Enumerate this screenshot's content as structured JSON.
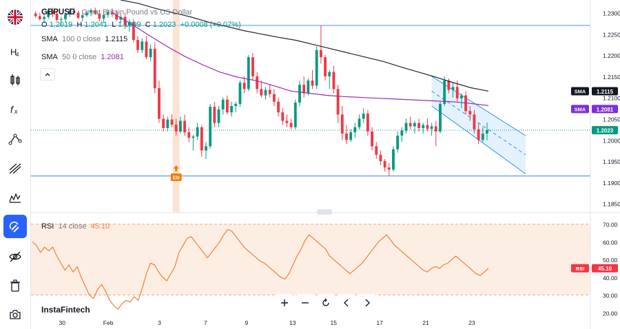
{
  "symbol": "GBPUSD",
  "symbol_desc": "Great Britain Pound vs US Dollar",
  "ohlc": {
    "o_label": "O",
    "o": "1.2019",
    "h_label": "H",
    "h": "1.2041",
    "l_label": "L",
    "l": "1.1999",
    "c_label": "C",
    "c": "1.2023",
    "chg": "+0.0008 (+0.07%)"
  },
  "sma100": {
    "label": "SMA",
    "params": "100  0  close",
    "value": "1.2115",
    "color": "#1e222d"
  },
  "sma50": {
    "label": "SMA",
    "params": "50  0  close",
    "value": "1.2081",
    "color": "#9c27b0"
  },
  "rsi": {
    "label": "RSI",
    "params": "14  close",
    "value": "45.10",
    "color": "#f57c3a"
  },
  "brand": "InstaFintech",
  "colors": {
    "up": "#089981",
    "down": "#f23645",
    "accent": "#2962ff",
    "channel": "#2196f3"
  },
  "chart_data": [
    {
      "type": "candlestick",
      "price_axis": {
        "ticks": [
          "1.2300",
          "1.2250",
          "1.2200",
          "1.2150",
          "1.2100",
          "1.2050",
          "1.2000",
          "1.1950",
          "1.1900",
          "1.1850"
        ],
        "min": 1.183,
        "max": 1.233
      },
      "x_ticks": [
        "30",
        "Feb",
        "3",
        "7",
        "9",
        "13",
        "15",
        "17",
        "21",
        "23"
      ],
      "last_price_label": "1.2023",
      "sma_labels": [
        {
          "name": "SMA",
          "value": "1.2115"
        },
        {
          "name": "SMA",
          "value": "1.2081"
        }
      ],
      "horizontal_levels": [
        1.227,
        1.1915
      ],
      "event_marker": {
        "label": "EN",
        "x_tick": "7"
      },
      "candles": [
        [
          1.2298,
          1.2303,
          1.2288,
          1.2292
        ],
        [
          1.2292,
          1.23,
          1.2282,
          1.2285
        ],
        [
          1.2285,
          1.2295,
          1.2275,
          1.229
        ],
        [
          1.229,
          1.231,
          1.2285,
          1.2305
        ],
        [
          1.2305,
          1.2312,
          1.229,
          1.2298
        ],
        [
          1.2298,
          1.2305,
          1.228,
          1.2283
        ],
        [
          1.2283,
          1.229,
          1.227,
          1.2285
        ],
        [
          1.2285,
          1.23,
          1.2278,
          1.2296
        ],
        [
          1.2296,
          1.231,
          1.229,
          1.2304
        ],
        [
          1.2304,
          1.2312,
          1.2295,
          1.23
        ],
        [
          1.23,
          1.2305,
          1.2285,
          1.2288
        ],
        [
          1.2288,
          1.2298,
          1.228,
          1.2294
        ],
        [
          1.2294,
          1.2305,
          1.229,
          1.23
        ],
        [
          1.23,
          1.231,
          1.2292,
          1.2306
        ],
        [
          1.2306,
          1.2312,
          1.2295,
          1.2298
        ],
        [
          1.2298,
          1.2305,
          1.228,
          1.2286
        ],
        [
          1.2286,
          1.23,
          1.2275,
          1.2295
        ],
        [
          1.2295,
          1.2308,
          1.2288,
          1.2302
        ],
        [
          1.2302,
          1.231,
          1.229,
          1.2296
        ],
        [
          1.2296,
          1.2304,
          1.228,
          1.2284
        ],
        [
          1.2284,
          1.2296,
          1.2276,
          1.229
        ],
        [
          1.229,
          1.23,
          1.2262,
          1.227
        ],
        [
          1.227,
          1.2285,
          1.2255,
          1.2278
        ],
        [
          1.2278,
          1.2285,
          1.223,
          1.2236
        ],
        [
          1.2236,
          1.2245,
          1.2205,
          1.2212
        ],
        [
          1.2212,
          1.224,
          1.2205,
          1.2232
        ],
        [
          1.2232,
          1.2245,
          1.219,
          1.2195
        ],
        [
          1.2195,
          1.2225,
          1.2185,
          1.2215
        ],
        [
          1.2215,
          1.223,
          1.211,
          1.2122
        ],
        [
          1.2122,
          1.214,
          1.204,
          1.205
        ],
        [
          1.205,
          1.206,
          1.202,
          1.2028
        ],
        [
          1.2028,
          1.2055,
          1.202,
          1.2048
        ],
        [
          1.2048,
          1.206,
          1.203,
          1.2036
        ],
        [
          1.2036,
          1.205,
          1.201,
          1.202
        ],
        [
          1.202,
          1.2055,
          1.2015,
          1.2045
        ],
        [
          1.2045,
          1.206,
          1.201,
          1.2018
        ],
        [
          1.2018,
          1.203,
          1.1995,
          1.2005
        ],
        [
          1.2005,
          1.2012,
          1.1975,
          1.2008
        ],
        [
          1.2008,
          1.204,
          1.2,
          1.203
        ],
        [
          1.203,
          1.2035,
          1.196,
          1.1975
        ],
        [
          1.1975,
          1.1995,
          1.1955,
          1.1985
        ],
        [
          1.1985,
          1.2085,
          1.198,
          1.2078
        ],
        [
          1.2078,
          1.209,
          1.203,
          1.204
        ],
        [
          1.204,
          1.208,
          1.203,
          1.2072
        ],
        [
          1.2072,
          1.21,
          1.206,
          1.2095
        ],
        [
          1.2095,
          1.2105,
          1.206,
          1.2065
        ],
        [
          1.2065,
          1.209,
          1.2055,
          1.208
        ],
        [
          1.208,
          1.209,
          1.2065,
          1.2085
        ],
        [
          1.2085,
          1.214,
          1.2078,
          1.2135
        ],
        [
          1.2135,
          1.215,
          1.211,
          1.212
        ],
        [
          1.212,
          1.22,
          1.2115,
          1.2195
        ],
        [
          1.2195,
          1.2205,
          1.214,
          1.215
        ],
        [
          1.215,
          1.216,
          1.211,
          1.212
        ],
        [
          1.212,
          1.214,
          1.21,
          1.2105
        ],
        [
          1.2105,
          1.2125,
          1.2095,
          1.2118
        ],
        [
          1.2118,
          1.213,
          1.21,
          1.2108
        ],
        [
          1.2108,
          1.212,
          1.208,
          1.209
        ],
        [
          1.209,
          1.21,
          1.2055,
          1.2065
        ],
        [
          1.2065,
          1.2075,
          1.2035,
          1.2045
        ],
        [
          1.2045,
          1.206,
          1.203,
          1.204
        ],
        [
          1.204,
          1.205,
          1.2025,
          1.203
        ],
        [
          1.203,
          1.2095,
          1.2025,
          1.2088
        ],
        [
          1.2088,
          1.214,
          1.208,
          1.213
        ],
        [
          1.213,
          1.215,
          1.21,
          1.211
        ],
        [
          1.211,
          1.2145,
          1.2105,
          1.214
        ],
        [
          1.214,
          1.2165,
          1.212,
          1.2128
        ],
        [
          1.2128,
          1.222,
          1.212,
          1.2212
        ],
        [
          1.2212,
          1.227,
          1.218,
          1.2195
        ],
        [
          1.2195,
          1.22,
          1.214,
          1.215
        ],
        [
          1.215,
          1.2165,
          1.212,
          1.216
        ],
        [
          1.216,
          1.2175,
          1.211,
          1.212
        ],
        [
          1.212,
          1.213,
          1.204,
          1.206
        ],
        [
          1.206,
          1.208,
          1.2,
          1.2015
        ],
        [
          1.2015,
          1.2035,
          1.199,
          1.2
        ],
        [
          1.2,
          1.2025,
          1.1995,
          1.2018
        ],
        [
          1.2018,
          1.204,
          1.2005,
          1.203
        ],
        [
          1.203,
          1.206,
          1.2025,
          1.205
        ],
        [
          1.205,
          1.2075,
          1.204,
          1.2062
        ],
        [
          1.2062,
          1.207,
          1.201,
          1.202
        ],
        [
          1.202,
          1.203,
          1.1975,
          1.1985
        ],
        [
          1.1985,
          1.1995,
          1.1955,
          1.1965
        ],
        [
          1.1965,
          1.1975,
          1.194,
          1.195
        ],
        [
          1.195,
          1.1955,
          1.1925,
          1.1935
        ],
        [
          1.1935,
          1.1945,
          1.1915,
          1.193
        ],
        [
          1.193,
          1.1985,
          1.1925,
          1.1978
        ],
        [
          1.1978,
          1.202,
          1.197,
          1.201
        ],
        [
          1.201,
          1.203,
          1.1995,
          1.2022
        ],
        [
          1.2022,
          1.205,
          1.2015,
          1.204
        ],
        [
          1.204,
          1.2055,
          1.2025,
          1.2032
        ],
        [
          1.2032,
          1.2045,
          1.2015,
          1.204
        ],
        [
          1.204,
          1.205,
          1.202,
          1.2028
        ],
        [
          1.2028,
          1.204,
          1.2015,
          1.2035
        ],
        [
          1.2035,
          1.205,
          1.202,
          1.2026
        ],
        [
          1.2026,
          1.204,
          1.201,
          1.2032
        ],
        [
          1.2032,
          1.2045,
          1.1985,
          1.202
        ],
        [
          1.202,
          1.209,
          1.2015,
          1.2085
        ],
        [
          1.2085,
          1.215,
          1.208,
          1.214
        ],
        [
          1.214,
          1.2145,
          1.211,
          1.2118
        ],
        [
          1.2118,
          1.2135,
          1.21,
          1.2125
        ],
        [
          1.2125,
          1.214,
          1.209,
          1.2098
        ],
        [
          1.2098,
          1.211,
          1.2075,
          1.2105
        ],
        [
          1.2105,
          1.2115,
          1.206,
          1.2068
        ],
        [
          1.2068,
          1.208,
          1.2045,
          1.206
        ],
        [
          1.206,
          1.207,
          1.2015,
          1.2025
        ],
        [
          1.2025,
          1.204,
          1.199,
          1.2
        ],
        [
          1.2,
          1.203,
          1.1995,
          1.2015
        ],
        [
          1.2015,
          1.2041,
          1.1999,
          1.2023
        ]
      ],
      "sma100_values": [
        1.233,
        1.2322,
        1.231,
        1.23,
        1.229,
        1.2278,
        1.2268,
        1.2258,
        1.225,
        1.2242,
        1.2235,
        1.2225,
        1.2215,
        1.2205,
        1.2195,
        1.2185,
        1.2172,
        1.216,
        1.2148,
        1.2135,
        1.2123,
        1.2115
      ],
      "sma50_values": [
        1.23,
        1.2275,
        1.2248,
        1.2222,
        1.2198,
        1.2178,
        1.216,
        1.2148,
        1.214,
        1.2128,
        1.2115,
        1.211,
        1.2105,
        1.2102,
        1.21,
        1.2098,
        1.2096,
        1.2094,
        1.2092,
        1.209,
        1.2086,
        1.2081
      ],
      "channel": {
        "upper_start": 1.215,
        "upper_end": 1.201,
        "lower_start": 1.208,
        "lower_end": 1.192
      },
      "rsi_axis": {
        "ticks": [
          "70.00",
          "60.00",
          "50.00",
          "40.00",
          "30.00",
          "20.00"
        ],
        "min": 17,
        "max": 73
      },
      "rsi_bands": [
        70,
        30
      ],
      "rsi_last_label": "45.10",
      "rsi_values": [
        60,
        58,
        55,
        54,
        57,
        56,
        53,
        55,
        57,
        54,
        52,
        50,
        47,
        45,
        46,
        44,
        43,
        45,
        47,
        45,
        42,
        40,
        38,
        36,
        34,
        32,
        31,
        33,
        35,
        36,
        34,
        32,
        29,
        27,
        25,
        24,
        23,
        22,
        24,
        26,
        27,
        25,
        27,
        26,
        28,
        29,
        27,
        32,
        35,
        38,
        44,
        46,
        48,
        47,
        44,
        42,
        40,
        39,
        38,
        40,
        41,
        43,
        46,
        50,
        53,
        55,
        57,
        59,
        61,
        62,
        60,
        58,
        56,
        55,
        53,
        51,
        52,
        54,
        56,
        58,
        60,
        62,
        64,
        66,
        67,
        65,
        63,
        61,
        58,
        56,
        54,
        53,
        51,
        50,
        48,
        46,
        45,
        43,
        44,
        46,
        48,
        50,
        52,
        54,
        56,
        58,
        60,
        61,
        59,
        57,
        55,
        53,
        51,
        49,
        48,
        46,
        44,
        43,
        42,
        41,
        43,
        44,
        45,
        45.1
      ],
      "rsi_profile": [
        60,
        58,
        54,
        57,
        55,
        57,
        52,
        48,
        44,
        47,
        43,
        46,
        40,
        35,
        30,
        28,
        33,
        36,
        32,
        27,
        24,
        22,
        25,
        27,
        26,
        29,
        27,
        34,
        42,
        48,
        47,
        43,
        40,
        38,
        42,
        46,
        54,
        58,
        62,
        63,
        60,
        57,
        54,
        51,
        54,
        57,
        60,
        64,
        67,
        66,
        63,
        60,
        57,
        55,
        53,
        51,
        49,
        48,
        46,
        44,
        42,
        40,
        39,
        42,
        47,
        52,
        56,
        61,
        64,
        62,
        60,
        58,
        56,
        52,
        50,
        48,
        46,
        44,
        42,
        44,
        46,
        48,
        51,
        54,
        57,
        60,
        62,
        64,
        61,
        58,
        56,
        54,
        52,
        50,
        48,
        46,
        44,
        43,
        45,
        46,
        45,
        47,
        48,
        50,
        52,
        50,
        48,
        46,
        44,
        42,
        41,
        43,
        45.1
      ]
    }
  ]
}
